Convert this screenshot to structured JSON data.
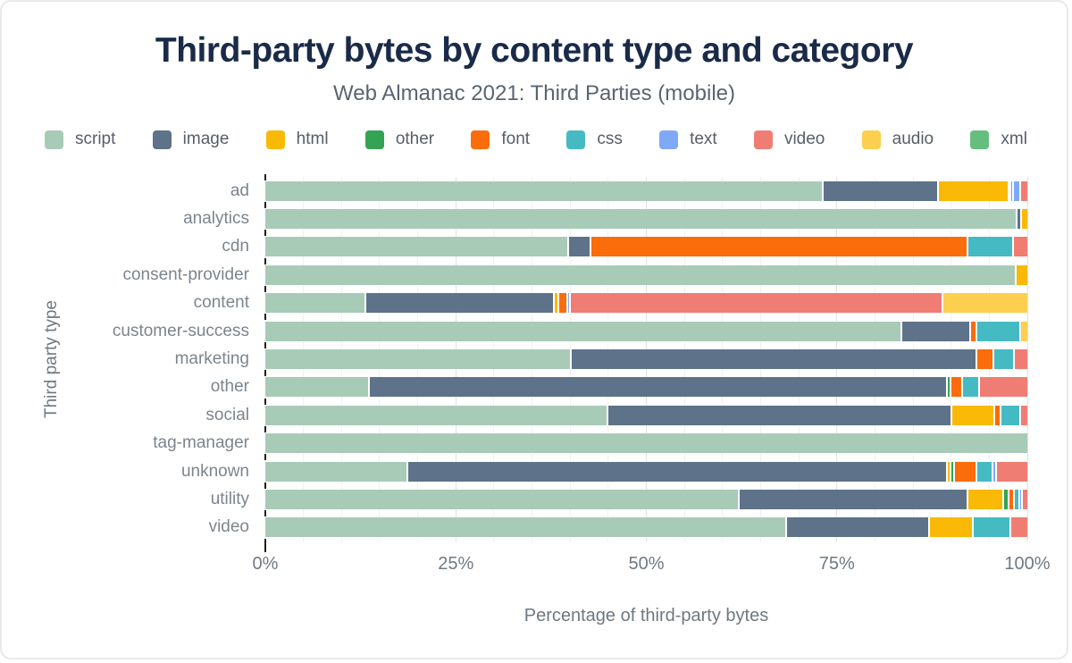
{
  "title": "Third-party bytes by content type and category",
  "subtitle": "Web Almanac 2021: Third Parties (mobile)",
  "accent_colors": {
    "title_navy": "#1a2b49",
    "subtitle_gray": "#5a6470",
    "axis_gray": "#6e7880",
    "tick_gray": "#7b858e",
    "grid_minor": "#f1f1f1",
    "grid_major": "#e2e2e2",
    "tick_mark": "#1b1b1b"
  },
  "chart_data": {
    "type": "bar",
    "orientation": "horizontal-stacked",
    "title": "Third-party bytes by content type and category",
    "subtitle": "Web Almanac 2021: Third Parties (mobile)",
    "xlabel": "Percentage of third-party bytes",
    "ylabel": "Third party type",
    "xlim": [
      0,
      100
    ],
    "x_ticks": [
      {
        "pos": 0,
        "label": "0%"
      },
      {
        "pos": 25,
        "label": "25%"
      },
      {
        "pos": 50,
        "label": "50%"
      },
      {
        "pos": 75,
        "label": "75%"
      },
      {
        "pos": 100,
        "label": "100%"
      }
    ],
    "grid": {
      "minor_step": 5,
      "major_step": 25,
      "on": true
    },
    "legend_position": "top",
    "legend": [
      {
        "name": "script",
        "color": "#a8cbb8"
      },
      {
        "name": "image",
        "color": "#5e7289"
      },
      {
        "name": "html",
        "color": "#f9b904"
      },
      {
        "name": "other",
        "color": "#34a353"
      },
      {
        "name": "font",
        "color": "#fb6c0a"
      },
      {
        "name": "css",
        "color": "#46bac3"
      },
      {
        "name": "text",
        "color": "#7fa9f8"
      },
      {
        "name": "video",
        "color": "#ef7d73"
      },
      {
        "name": "audio",
        "color": "#fccf4f"
      },
      {
        "name": "xml",
        "color": "#66be7e"
      }
    ],
    "categories": [
      "ad",
      "analytics",
      "cdn",
      "consent-provider",
      "content",
      "customer-success",
      "marketing",
      "other",
      "social",
      "tag-manager",
      "unknown",
      "utility",
      "video"
    ],
    "series": [
      {
        "name": "script",
        "values": [
          73.0,
          98.5,
          39.6,
          98.4,
          13.0,
          83.4,
          40.0,
          13.5,
          44.8,
          100,
          18.5,
          62.0,
          68.2
        ]
      },
      {
        "name": "image",
        "values": [
          15.2,
          0.6,
          3.0,
          0,
          24.8,
          9.0,
          53.2,
          75.8,
          45.1,
          0,
          70.8,
          30.0,
          18.8
        ]
      },
      {
        "name": "html",
        "values": [
          9.2,
          0.9,
          0,
          1.6,
          0.5,
          0,
          0,
          0,
          5.6,
          0,
          0.5,
          4.7,
          5.7
        ]
      },
      {
        "name": "other",
        "values": [
          0,
          0,
          0,
          0,
          0,
          0,
          0,
          0.5,
          0,
          0,
          0.5,
          0.7,
          0
        ]
      },
      {
        "name": "font",
        "values": [
          0.3,
          0,
          49.4,
          0,
          1.2,
          0.8,
          2.2,
          1.5,
          0.9,
          0,
          2.9,
          0.7,
          0
        ]
      },
      {
        "name": "css",
        "values": [
          0.3,
          0,
          6.0,
          0,
          0,
          5.8,
          2.7,
          2.3,
          2.6,
          0,
          2.1,
          0.7,
          4.9
        ]
      },
      {
        "name": "text",
        "values": [
          0.9,
          0,
          0,
          0,
          0.4,
          0,
          0,
          0,
          0,
          0,
          0.5,
          0.4,
          0
        ]
      },
      {
        "name": "video",
        "values": [
          1.1,
          0,
          2.0,
          0,
          48.8,
          0,
          1.9,
          6.4,
          1.0,
          0,
          4.2,
          0.8,
          2.4
        ]
      },
      {
        "name": "audio",
        "values": [
          0,
          0,
          0,
          0,
          11.3,
          1.0,
          0,
          0,
          0,
          0,
          0,
          0,
          0
        ]
      },
      {
        "name": "xml",
        "values": [
          0,
          0,
          0,
          0,
          0,
          0,
          0,
          0,
          0,
          0,
          0,
          0,
          0
        ]
      }
    ]
  }
}
